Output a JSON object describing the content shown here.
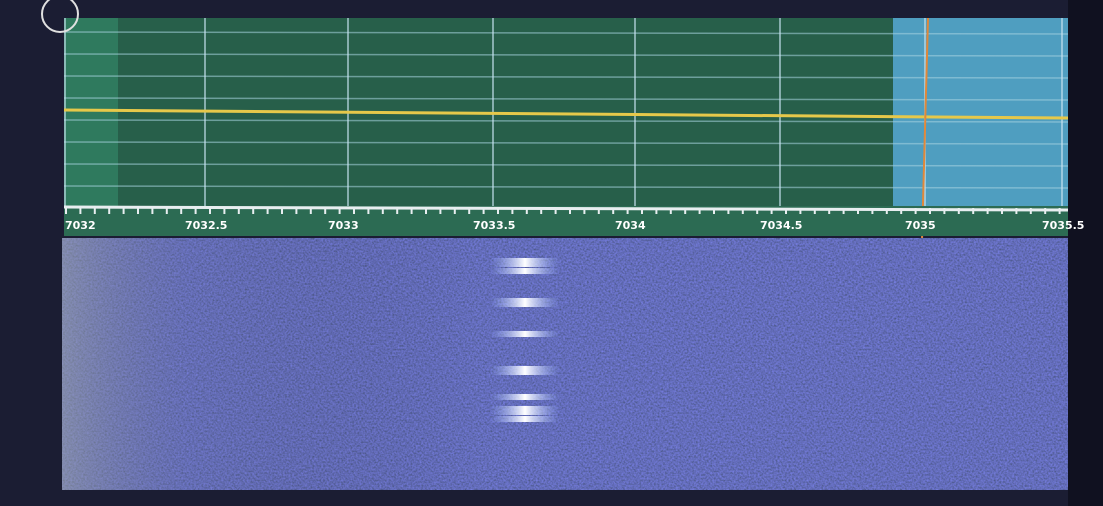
{
  "frequency_scale": {
    "labels": [
      "7032",
      "7032.5",
      "7033",
      "7033.5",
      "7034",
      "7034.5",
      "7035",
      "7035.5"
    ]
  }
}
